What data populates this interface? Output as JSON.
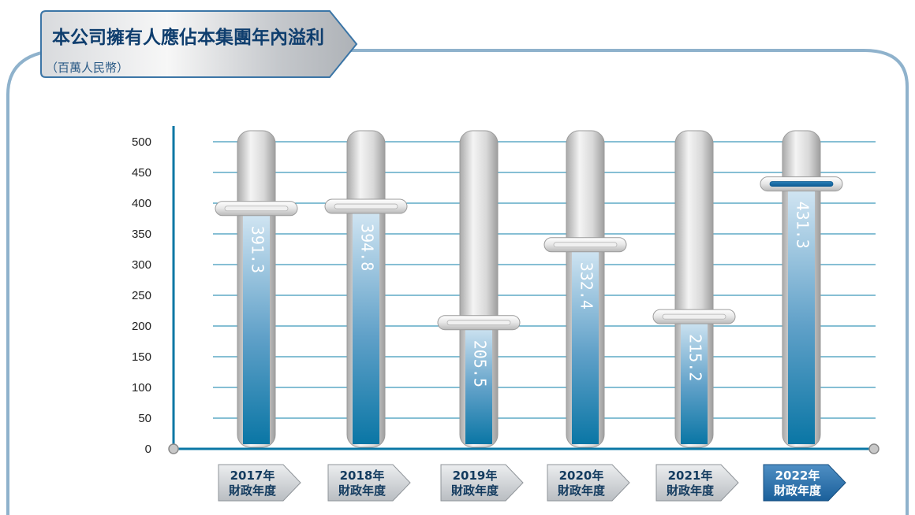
{
  "colors": {
    "accent": "#0a77a5",
    "frame": "#7fa9c7",
    "grid": "#0e7fa8",
    "bar_top": "#cfe3f2",
    "bar_bottom": "#0b78a6",
    "tube": "#d7d7d7",
    "tag": "#c9ccd0",
    "tag_highlight": "#1d6aa8"
  },
  "chart_data": {
    "type": "bar",
    "title": "本公司擁有人應佔本集團年內溢利",
    "subtitle": "（百萬人民幣）",
    "categories": [
      [
        "2017年",
        "財政年度"
      ],
      [
        "2018年",
        "財政年度"
      ],
      [
        "2019年",
        "財政年度"
      ],
      [
        "2020年",
        "財政年度"
      ],
      [
        "2021年",
        "財政年度"
      ],
      [
        "2022年",
        "財政年度"
      ]
    ],
    "values": [
      391.3,
      394.8,
      205.5,
      332.4,
      215.2,
      431.3
    ],
    "value_labels": [
      "391.3",
      "394.8",
      "205.5",
      "332.4",
      "215.2",
      "431.3"
    ],
    "yticks": [
      "0",
      "50",
      "100",
      "150",
      "200",
      "250",
      "300",
      "350",
      "400",
      "450",
      "500"
    ],
    "ylim": [
      0,
      500
    ],
    "grid": true,
    "highlight_index": 5
  }
}
